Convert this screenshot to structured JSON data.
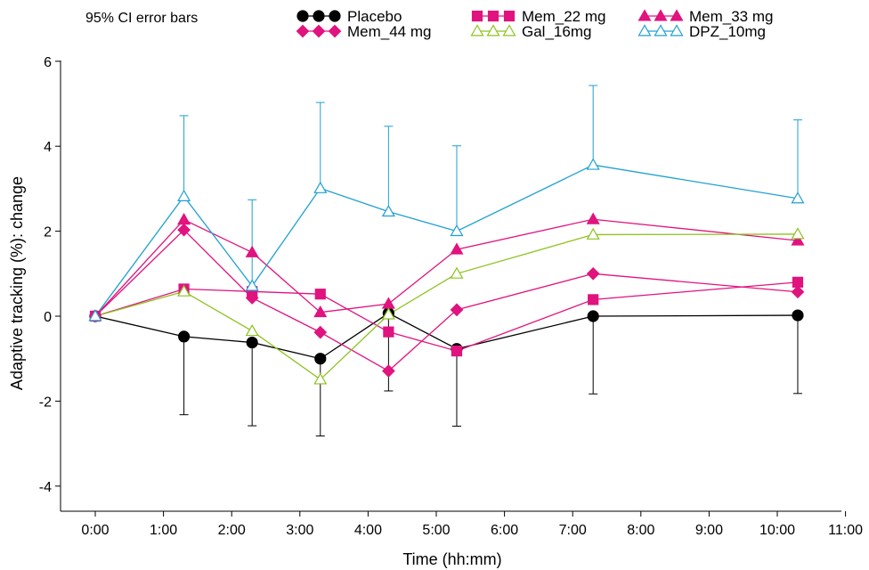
{
  "note": "95% CI error bars",
  "chart_data": {
    "type": "line",
    "title": "",
    "xlabel": "Time (hh:mm)",
    "ylabel": "Adaptive tracking (%): change",
    "x_range_hours": [
      0,
      11
    ],
    "ylim": [
      -4,
      6
    ],
    "x_tick_labels": [
      "0:00",
      "1:00",
      "2:00",
      "3:00",
      "4:00",
      "5:00",
      "6:00",
      "7:00",
      "8:00",
      "9:00",
      "10:00",
      "11:00"
    ],
    "y_tick_labels": [
      "-4",
      "-2",
      "0",
      "2",
      "4",
      "6"
    ],
    "y_ticks": [
      -4,
      -2,
      0,
      2,
      4,
      6
    ],
    "grid": false,
    "legend": "top",
    "x_hours": [
      0,
      1.3,
      2.3,
      3.3,
      4.3,
      5.3,
      7.3,
      10.3
    ],
    "series": [
      {
        "name": "Placebo",
        "color": "#000000",
        "marker": "circle-filled",
        "values": [
          0,
          -0.48,
          -0.62,
          -1.0,
          0.07,
          -0.77,
          0.0,
          0.02
        ],
        "error_bar_ends": [
          null,
          -2.32,
          -2.58,
          -2.82,
          -1.76,
          -2.59,
          -1.83,
          -1.82
        ]
      },
      {
        "name": "Mem_22 mg",
        "color": "#e0137f",
        "marker": "square-filled",
        "values": [
          0,
          0.64,
          0.58,
          0.52,
          -0.37,
          -0.82,
          0.39,
          0.8
        ]
      },
      {
        "name": "Mem_33 mg",
        "color": "#e0137f",
        "marker": "triangle-filled",
        "values": [
          0,
          2.27,
          1.5,
          0.09,
          0.29,
          1.57,
          2.28,
          1.78
        ]
      },
      {
        "name": "Mem_44 mg",
        "color": "#e0137f",
        "marker": "diamond-filled",
        "values": [
          0,
          2.03,
          0.43,
          -0.38,
          -1.29,
          0.15,
          1.0,
          0.57
        ]
      },
      {
        "name": "Gal_16mg",
        "color": "#8dc21f",
        "marker": "triangle-open",
        "values": [
          0,
          0.58,
          -0.35,
          -1.49,
          0.04,
          1.0,
          1.92,
          1.93
        ]
      },
      {
        "name": "DPZ_10mg",
        "color": "#1fa0d2",
        "marker": "triangle-open",
        "values": [
          0,
          2.82,
          0.71,
          3.01,
          2.46,
          2.0,
          3.56,
          2.77
        ],
        "error_bar_ends": [
          null,
          4.72,
          2.74,
          5.03,
          4.47,
          4.01,
          5.43,
          4.62
        ]
      }
    ]
  }
}
